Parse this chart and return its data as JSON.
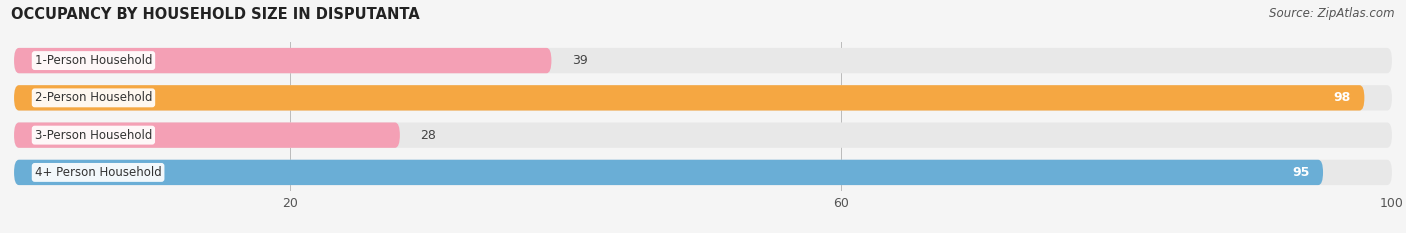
{
  "title": "OCCUPANCY BY HOUSEHOLD SIZE IN DISPUTANTA",
  "source": "Source: ZipAtlas.com",
  "categories": [
    "1-Person Household",
    "2-Person Household",
    "3-Person Household",
    "4+ Person Household"
  ],
  "values": [
    39,
    98,
    28,
    95
  ],
  "bar_colors": [
    "#f4a0b5",
    "#f5a742",
    "#f4a0b5",
    "#6aaed6"
  ],
  "bar_bg_color": "#e8e8e8",
  "xlim": [
    0,
    100
  ],
  "xticks": [
    20,
    60,
    100
  ],
  "figsize": [
    14.06,
    2.33
  ],
  "dpi": 100,
  "background_color": "#f5f5f5"
}
